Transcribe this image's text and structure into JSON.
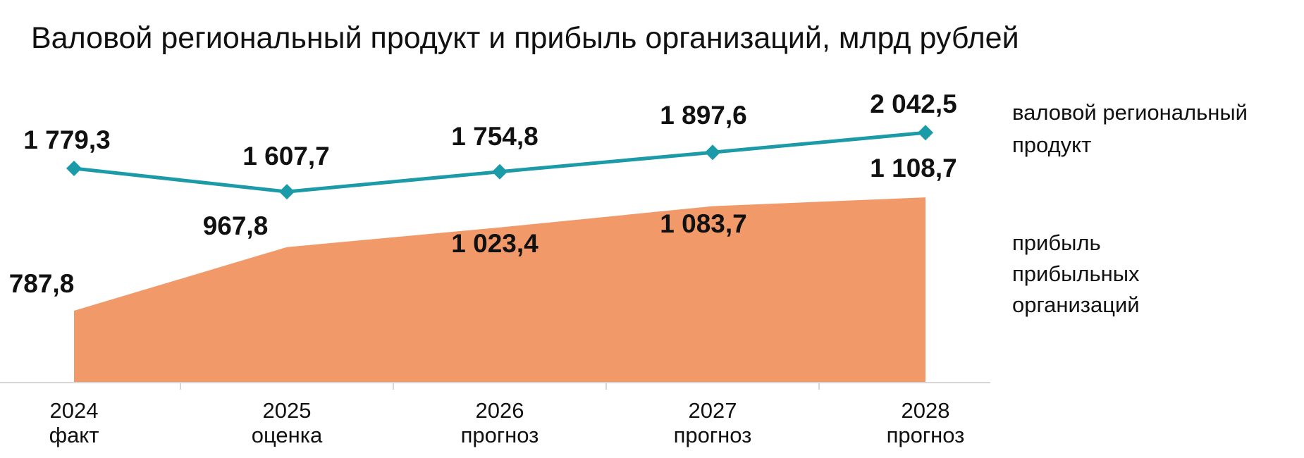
{
  "chart_data": {
    "type": "line",
    "title": "Валовой региональный продукт и прибыль организаций, млрд рублей",
    "categories": [
      [
        "2024",
        "факт"
      ],
      [
        "2025",
        "оценка"
      ],
      [
        "2026",
        "прогноз"
      ],
      [
        "2027",
        "прогноз"
      ],
      [
        "2028",
        "прогноз"
      ]
    ],
    "series": [
      {
        "name": "валовой региональный продукт",
        "legend_lines": [
          "валовой региональный",
          "продукт"
        ],
        "kind": "line",
        "color": "#1b9aa8",
        "values": [
          1779.3,
          1607.7,
          1754.8,
          1897.6,
          2042.5
        ],
        "labels": [
          "1 779,3",
          "1 607,7",
          "1 754,8",
          "1 897,6",
          "2 042,5"
        ]
      },
      {
        "name": "прибыль прибыльных организаций",
        "legend_lines": [
          "прибыль",
          "прибыльных",
          "организаций"
        ],
        "kind": "area",
        "color": "#f2996a",
        "values": [
          787.8,
          967.8,
          1023.4,
          1083.7,
          1108.7
        ],
        "labels": [
          "787,8",
          "967,8",
          "1 023,4",
          "1 083,7",
          "1 108,7"
        ]
      }
    ],
    "legend_position": "right",
    "grid": false
  }
}
